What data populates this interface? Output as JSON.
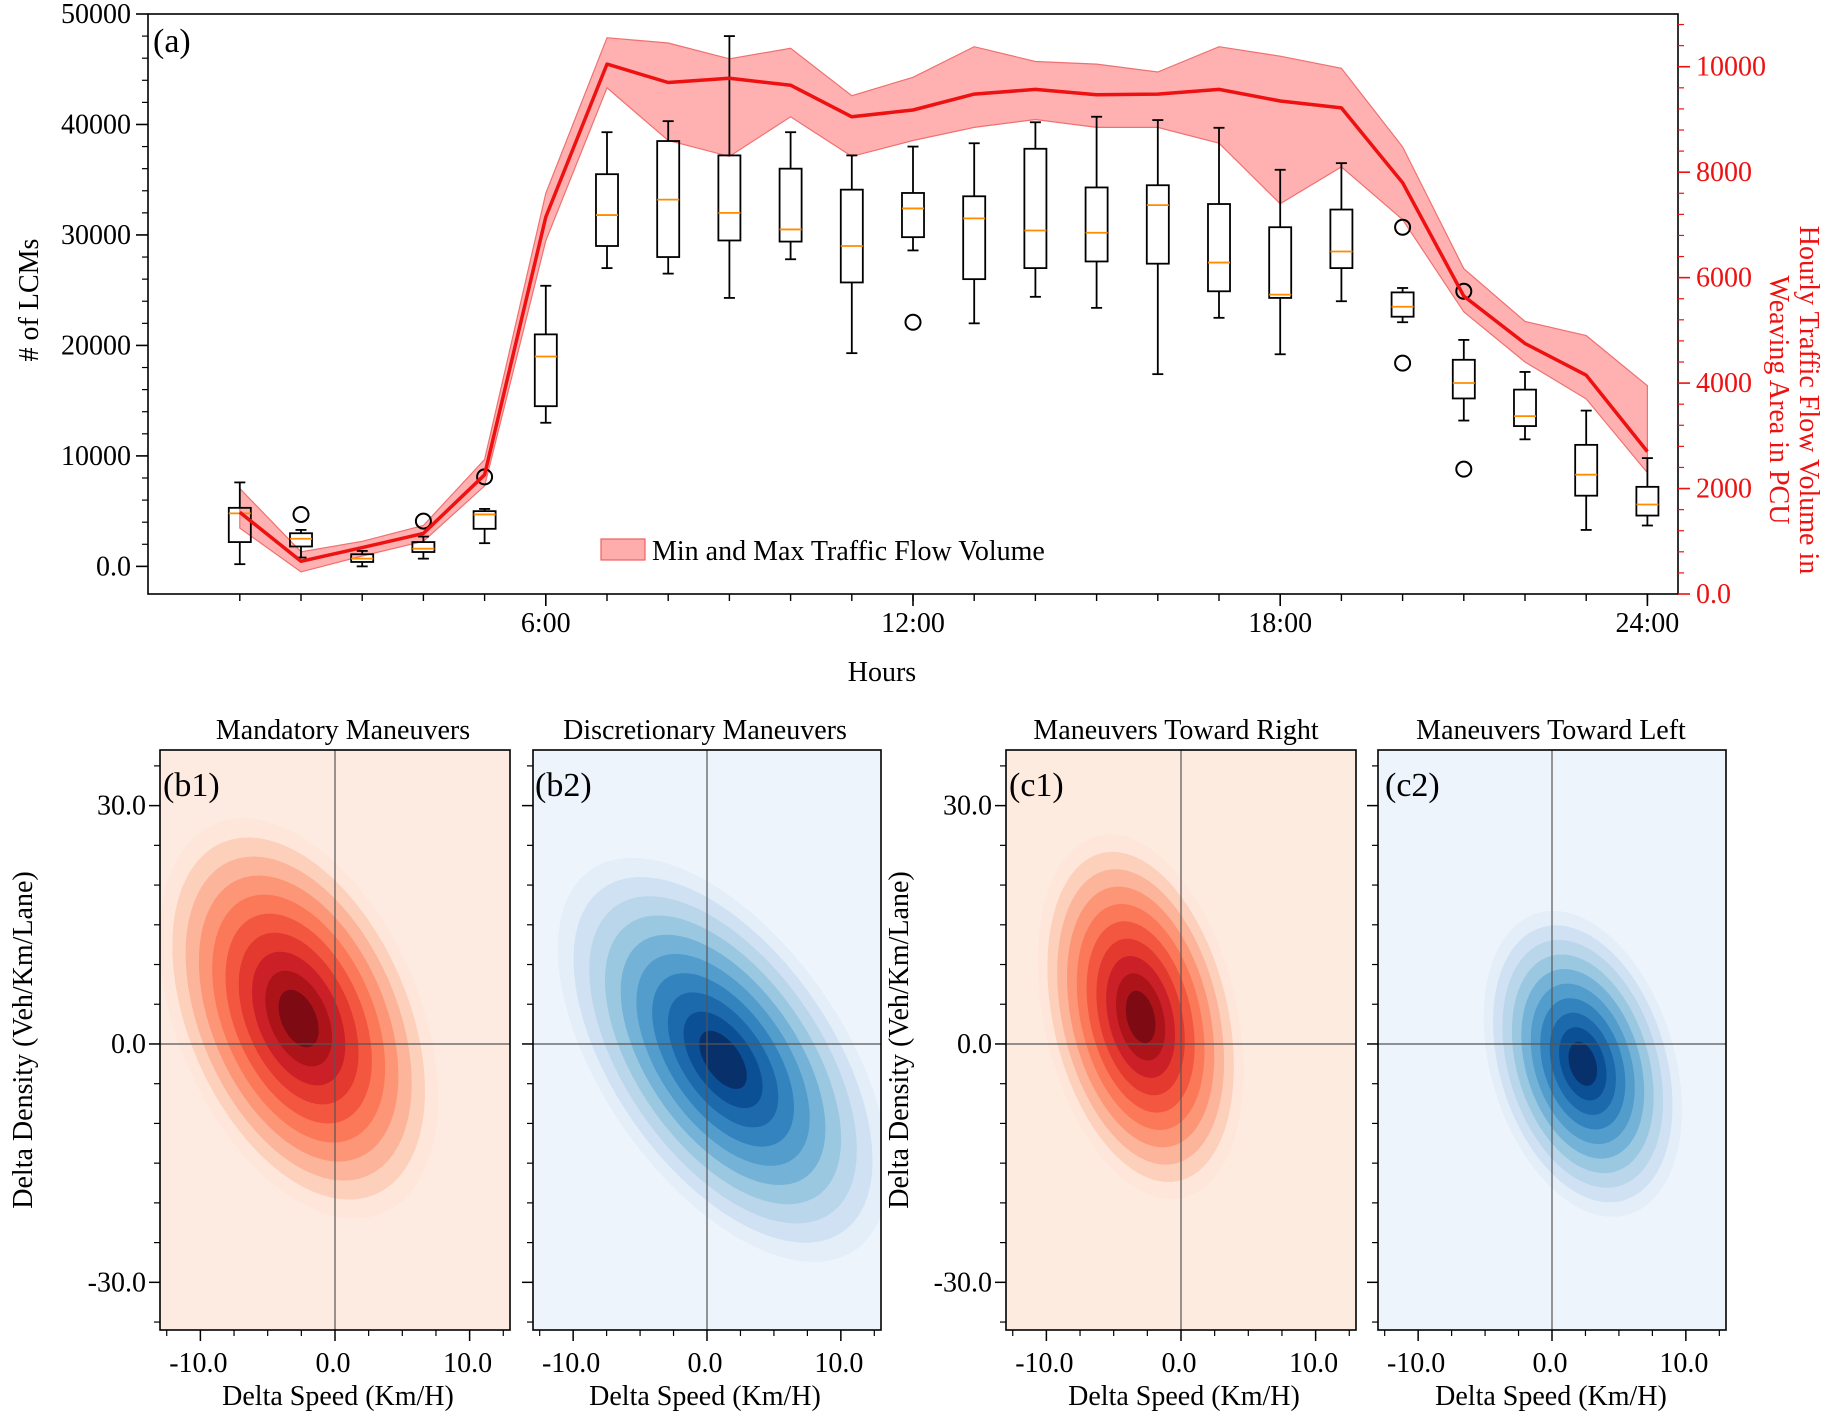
{
  "chart_data": [
    {
      "id": "a",
      "type": "box",
      "panel_label": "(a)",
      "xlabel": "Hours",
      "ylabel": "# of LCMs",
      "y2label_line1": "Hourly Traffic Flow Volume in",
      "y2label_line2": "Weaving Area in PCU",
      "x_range": [
        -0.5,
        24.5
      ],
      "y_range": [
        -2500,
        50000
      ],
      "y2_range": [
        0,
        11000
      ],
      "x_ticks": [
        6,
        12,
        18,
        24
      ],
      "x_ticklabels": [
        "6:00",
        "12:00",
        "18:00",
        "24:00"
      ],
      "y_ticks": [
        0,
        10000,
        20000,
        30000,
        40000,
        50000
      ],
      "y_ticklabels": [
        "0.0",
        "10000",
        "20000",
        "30000",
        "40000",
        "50000"
      ],
      "y2_ticks": [
        0,
        2000,
        4000,
        6000,
        8000,
        10000
      ],
      "y2_ticklabels": [
        "0.0",
        "2000",
        "4000",
        "6000",
        "8000",
        "10000"
      ],
      "legend_label": "Min and Max Traffic Flow Volume",
      "legend_position": "lower-center",
      "line_color": "#ee1111",
      "band_color": "#ff9090",
      "median_color": "#ff8c00",
      "boxes": [
        {
          "x": 1,
          "wlo": 200,
          "q1": 2200,
          "med": 4800,
          "q3": 5300,
          "whi": 7600,
          "fliers": []
        },
        {
          "x": 2,
          "wlo": 800,
          "q1": 1800,
          "med": 2500,
          "q3": 3000,
          "whi": 3300,
          "fliers": [
            4700
          ]
        },
        {
          "x": 3,
          "wlo": 0,
          "q1": 400,
          "med": 700,
          "q3": 1100,
          "whi": 1400,
          "fliers": []
        },
        {
          "x": 4,
          "wlo": 700,
          "q1": 1300,
          "med": 1600,
          "q3": 2200,
          "whi": 2700,
          "fliers": [
            4100
          ]
        },
        {
          "x": 5,
          "wlo": 2100,
          "q1": 3400,
          "med": 4700,
          "q3": 5000,
          "whi": 5200,
          "fliers": [
            8100
          ]
        },
        {
          "x": 6,
          "wlo": 13000,
          "q1": 14500,
          "med": 19000,
          "q3": 21000,
          "whi": 25400,
          "fliers": []
        },
        {
          "x": 7,
          "wlo": 27000,
          "q1": 29000,
          "med": 31800,
          "q3": 35500,
          "whi": 39300,
          "fliers": []
        },
        {
          "x": 8,
          "wlo": 26500,
          "q1": 28000,
          "med": 33200,
          "q3": 38500,
          "whi": 40300,
          "fliers": []
        },
        {
          "x": 9,
          "wlo": 24300,
          "q1": 29500,
          "med": 32000,
          "q3": 37200,
          "whi": 48000,
          "fliers": []
        },
        {
          "x": 10,
          "wlo": 27800,
          "q1": 29400,
          "med": 30500,
          "q3": 36000,
          "whi": 39300,
          "fliers": []
        },
        {
          "x": 11,
          "wlo": 19300,
          "q1": 25700,
          "med": 29000,
          "q3": 34100,
          "whi": 37200,
          "fliers": []
        },
        {
          "x": 12,
          "wlo": 28600,
          "q1": 29800,
          "med": 32400,
          "q3": 33800,
          "whi": 38000,
          "fliers": [
            22100
          ]
        },
        {
          "x": 13,
          "wlo": 22000,
          "q1": 26000,
          "med": 31500,
          "q3": 33500,
          "whi": 38300,
          "fliers": []
        },
        {
          "x": 14,
          "wlo": 24400,
          "q1": 27000,
          "med": 30400,
          "q3": 37800,
          "whi": 40200,
          "fliers": []
        },
        {
          "x": 15,
          "wlo": 23400,
          "q1": 27600,
          "med": 30200,
          "q3": 34300,
          "whi": 40700,
          "fliers": []
        },
        {
          "x": 16,
          "wlo": 17400,
          "q1": 27400,
          "med": 32700,
          "q3": 34500,
          "whi": 40400,
          "fliers": []
        },
        {
          "x": 17,
          "wlo": 22500,
          "q1": 24900,
          "med": 27500,
          "q3": 32800,
          "whi": 39700,
          "fliers": []
        },
        {
          "x": 18,
          "wlo": 19200,
          "q1": 24300,
          "med": 24600,
          "q3": 30700,
          "whi": 35900,
          "fliers": []
        },
        {
          "x": 19,
          "wlo": 24000,
          "q1": 27000,
          "med": 28500,
          "q3": 32300,
          "whi": 36500,
          "fliers": []
        },
        {
          "x": 20,
          "wlo": 22100,
          "q1": 22600,
          "med": 23500,
          "q3": 24800,
          "whi": 25200,
          "fliers": [
            30700,
            18400
          ]
        },
        {
          "x": 21,
          "wlo": 13200,
          "q1": 15200,
          "med": 16600,
          "q3": 18700,
          "whi": 20500,
          "fliers": [
            24900,
            8800
          ]
        },
        {
          "x": 22,
          "wlo": 11500,
          "q1": 12700,
          "med": 13600,
          "q3": 16000,
          "whi": 17600,
          "fliers": []
        },
        {
          "x": 23,
          "wlo": 3300,
          "q1": 6400,
          "med": 8300,
          "q3": 11000,
          "whi": 14100,
          "fliers": []
        },
        {
          "x": 24,
          "wlo": 3700,
          "q1": 4600,
          "med": 5600,
          "q3": 7200,
          "whi": 9800,
          "fliers": []
        }
      ],
      "flow_line": {
        "name": "Hourly Traffic Flow Volume",
        "x": [
          1,
          2,
          3,
          4,
          5,
          6,
          7,
          8,
          9,
          10,
          11,
          12,
          13,
          14,
          15,
          16,
          17,
          18,
          19,
          20,
          21,
          22,
          23,
          24
        ],
        "values": [
          1550,
          620,
          880,
          1150,
          2260,
          7150,
          10050,
          9700,
          9780,
          9650,
          9050,
          9180,
          9480,
          9570,
          9470,
          9480,
          9570,
          9350,
          9220,
          7800,
          5650,
          4750,
          4150,
          2700
        ]
      },
      "flow_band": {
        "name": "Min and Max Traffic Flow Volume",
        "x": [
          1,
          2,
          3,
          4,
          5,
          6,
          7,
          8,
          9,
          10,
          11,
          12,
          13,
          14,
          15,
          16,
          17,
          18,
          19,
          20,
          21,
          22,
          23,
          24
        ],
        "min": [
          1250,
          420,
          720,
          1000,
          2050,
          6700,
          9600,
          8600,
          8300,
          9050,
          8300,
          8600,
          8850,
          9000,
          8850,
          8850,
          8550,
          7400,
          8100,
          7100,
          5350,
          4400,
          3700,
          2300
        ],
        "max": [
          2000,
          800,
          1000,
          1300,
          2550,
          7600,
          10550,
          10450,
          10150,
          10350,
          9450,
          9800,
          10380,
          10100,
          10050,
          9900,
          10380,
          10200,
          9970,
          8480,
          6170,
          5170,
          4900,
          3950
        ]
      }
    },
    {
      "id": "b1",
      "type": "kde_contour",
      "panel_label": "(b1)",
      "title": "Mandatory Maneuvers",
      "xlabel": "Delta Speed (Km/H)",
      "ylabel": "Delta Density (Veh/Km/Lane)",
      "x_range": [
        -13,
        13
      ],
      "y_range": [
        -36,
        37
      ],
      "x_ticklabels": [
        "-10.0",
        "0.0",
        "10.0"
      ],
      "y_ticklabels": [
        "30.0",
        "0.0",
        "-30.0"
      ],
      "center": [
        -2.7,
        3.2
      ],
      "sx": 4.2,
      "sy": 10.2,
      "rho": -0.4,
      "colors": [
        "#fee6da",
        "#fdd0bb",
        "#fcb49a",
        "#fc9677",
        "#fb7858",
        "#f4573f",
        "#e3392f",
        "#cb2027",
        "#ad1419",
        "#7e0b14"
      ],
      "background": "#fdebe2"
    },
    {
      "id": "b2",
      "type": "kde_contour",
      "panel_label": "(b2)",
      "title": "Discretionary Maneuvers",
      "xlabel": "Delta Speed (Km/H)",
      "ylabel": "",
      "x_range": [
        -13,
        13
      ],
      "y_range": [
        -36,
        37
      ],
      "x_ticklabels": [
        "-10.0",
        "0.0",
        "10.0"
      ],
      "y_ticklabels": [],
      "center": [
        1.2,
        -2.0
      ],
      "sx": 5.0,
      "sy": 10.3,
      "rho": -0.55,
      "colors": [
        "#e3eef9",
        "#d0e1f3",
        "#bad6eb",
        "#9ac8e0",
        "#74b2d8",
        "#529dcc",
        "#3383be",
        "#1c69ab",
        "#0b4f94",
        "#08306b"
      ],
      "background": "#edf4fc"
    },
    {
      "id": "c1",
      "type": "kde_contour",
      "panel_label": "(c1)",
      "title": "Maneuvers Toward Right",
      "xlabel": "Delta Speed (Km/H)",
      "ylabel": "Delta Density (Veh/Km/Lane)",
      "x_range": [
        -13,
        13
      ],
      "y_range": [
        -36,
        37
      ],
      "x_ticklabels": [
        "-10.0",
        "0.0",
        "10.0"
      ],
      "y_ticklabels": [
        "30.0",
        "0.0",
        "-30.0"
      ],
      "center": [
        -3.0,
        3.4
      ],
      "sx": 3.1,
      "sy": 9.3,
      "rho": -0.3,
      "colors": [
        "#fee6da",
        "#fdd0bb",
        "#fcb49a",
        "#fc9677",
        "#fb7858",
        "#f4573f",
        "#e3392f",
        "#cb2027",
        "#ad1419",
        "#7e0b14"
      ],
      "background": "#feebe0"
    },
    {
      "id": "c2",
      "type": "kde_contour",
      "panel_label": "(c2)",
      "title": "Maneuvers Toward Left",
      "xlabel": "Delta Speed (Km/H)",
      "ylabel": "",
      "x_range": [
        -13,
        13
      ],
      "y_range": [
        -36,
        37
      ],
      "x_ticklabels": [
        "-10.0",
        "0.0",
        "10.0"
      ],
      "y_ticklabels": [],
      "center": [
        2.3,
        -2.5
      ],
      "sx": 3.0,
      "sy": 7.8,
      "rho": -0.3,
      "colors": [
        "#e3eef9",
        "#d0e1f3",
        "#bad6eb",
        "#9ac8e0",
        "#74b2d8",
        "#529dcc",
        "#3383be",
        "#1c69ab",
        "#0b4f94",
        "#08306b"
      ],
      "background": "#edf4fc"
    }
  ]
}
